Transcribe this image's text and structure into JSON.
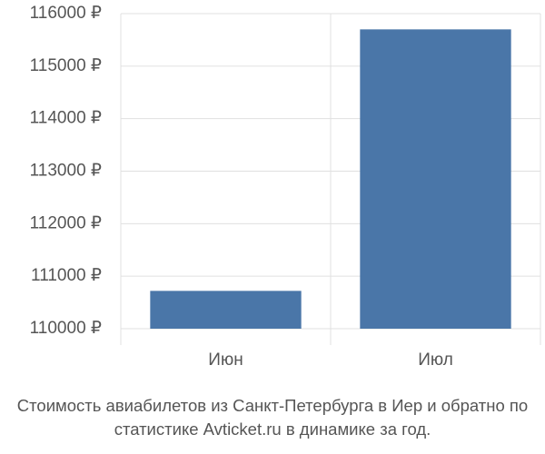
{
  "chart_data": {
    "type": "bar",
    "title": "Стоимость авиабилетов из Санкт-Петербурга в Иер и обратно по статистике Avticket.ru в динамике за год.",
    "categories": [
      "Июн",
      "Июл"
    ],
    "values": [
      110720,
      115700
    ],
    "color": "#4a76a8",
    "ylim": [
      110000,
      116000
    ],
    "yticks": [
      {
        "value": 110000,
        "label": "110000 ₽"
      },
      {
        "value": 111000,
        "label": "111000 ₽"
      },
      {
        "value": 112000,
        "label": "112000 ₽"
      },
      {
        "value": 113000,
        "label": "113000 ₽"
      },
      {
        "value": 114000,
        "label": "114000 ₽"
      },
      {
        "value": 115000,
        "label": "115000 ₽"
      },
      {
        "value": 116000,
        "label": "116000 ₽"
      }
    ],
    "grid": true
  }
}
